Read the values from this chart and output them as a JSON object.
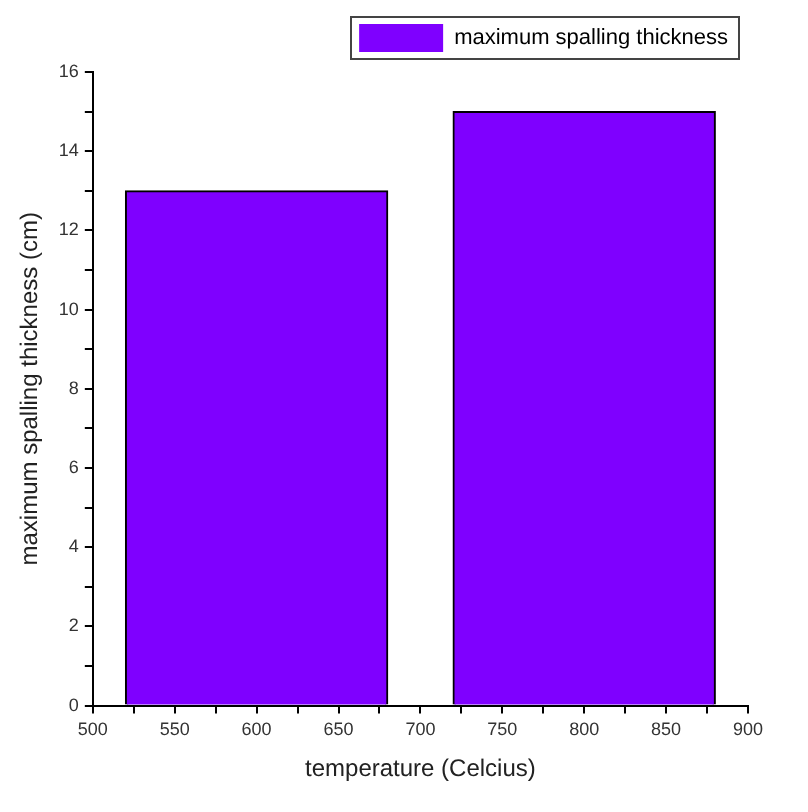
{
  "chart_data": {
    "type": "bar",
    "xlabel": "temperature (Celcius)",
    "ylabel": "maximum spalling thickness (cm)",
    "x": [
      600,
      800
    ],
    "series": [
      {
        "name": "maximum spalling thickness",
        "color": "#7f00ff",
        "values": [
          13,
          15
        ]
      }
    ],
    "xlim": [
      500,
      900
    ],
    "xticks": [
      500,
      {
        "value": 525,
        "label": null
      },
      550,
      {
        "value": 575,
        "label": null
      },
      600,
      {
        "value": 625,
        "label": null
      },
      650,
      {
        "value": 675,
        "label": null
      },
      700,
      {
        "value": 725,
        "label": null
      },
      750,
      {
        "value": 775,
        "label": null
      },
      800,
      {
        "value": 825,
        "label": null
      },
      850,
      {
        "value": 875,
        "label": null
      },
      900
    ],
    "ylim": [
      0,
      16
    ],
    "yticks": [
      0,
      {
        "value": 1,
        "label": null
      },
      2,
      {
        "value": 3,
        "label": null
      },
      4,
      {
        "value": 5,
        "label": null
      },
      6,
      {
        "value": 7,
        "label": null
      },
      8,
      {
        "value": 9,
        "label": null
      },
      10,
      {
        "value": 11,
        "label": null
      },
      12,
      {
        "value": 13,
        "label": null
      },
      14,
      {
        "value": 15,
        "label": null
      },
      16
    ],
    "grid": false,
    "legend": "top right"
  }
}
